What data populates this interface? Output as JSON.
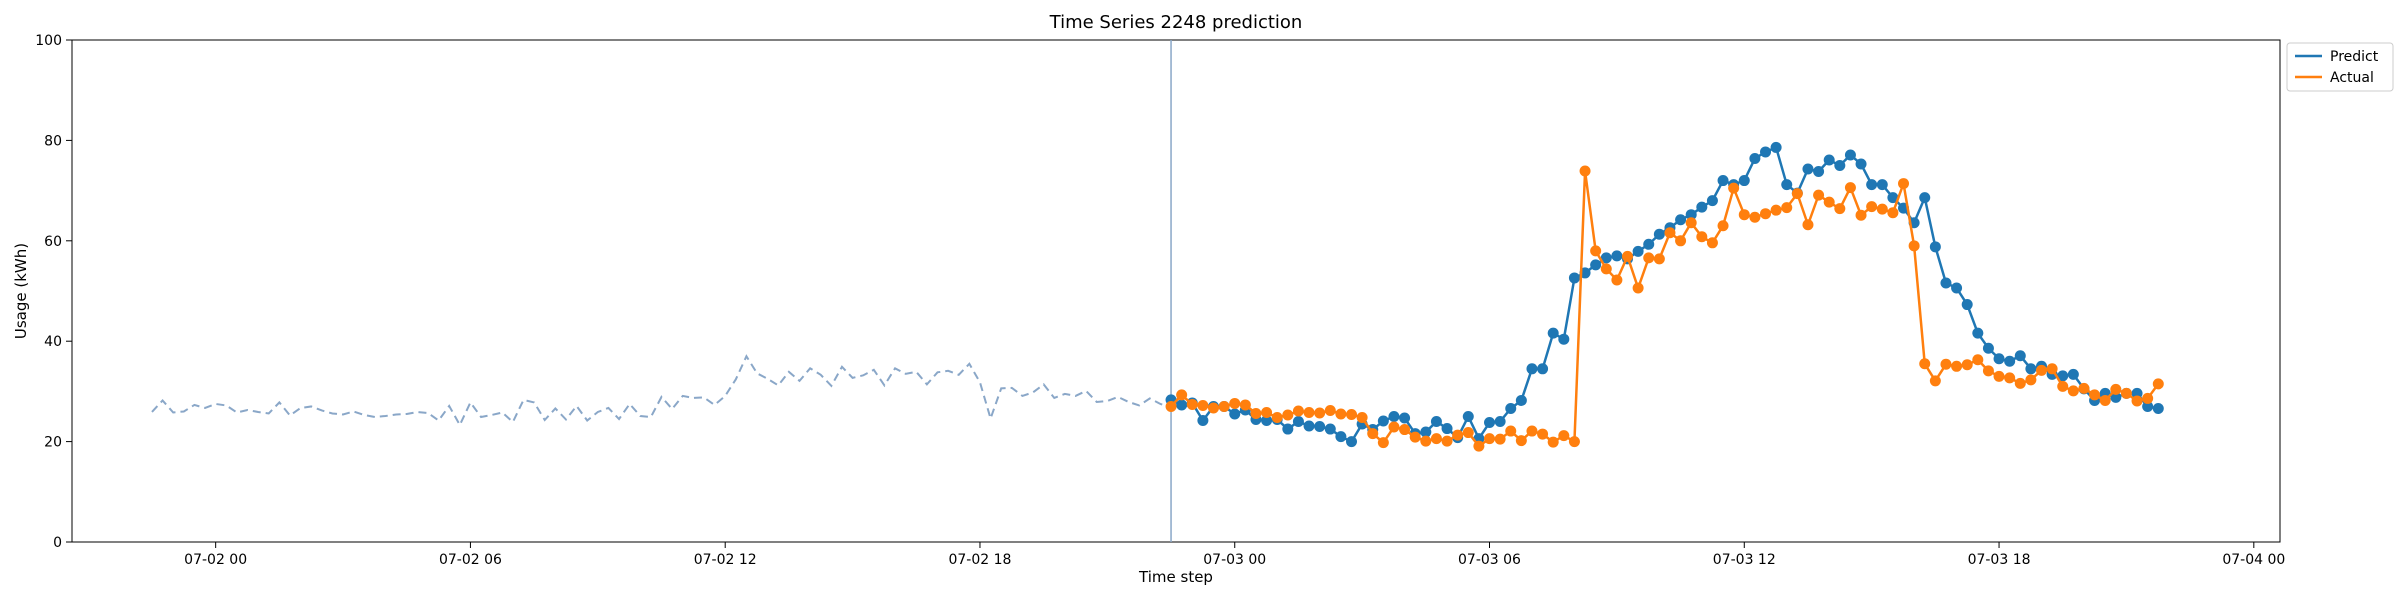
{
  "colors": {
    "predict": "#1f77b4",
    "actual": "#ff7f0e",
    "history": "#8aa7c8",
    "split_line": "#8aa7c8"
  },
  "chart_data": {
    "type": "line",
    "title": "Time Series 2248 prediction",
    "xlabel": "Time step",
    "ylabel": "Usage (kWh)",
    "xlim": [
      "07-01 20:37",
      "07-04 00:37"
    ],
    "ylim": [
      0,
      100
    ],
    "grid": false,
    "legend_position": "top-right",
    "x_ticks": [
      "07-02 00",
      "07-02 06",
      "07-02 12",
      "07-02 18",
      "07-03 00",
      "07-03 06",
      "07-03 12",
      "07-03 18",
      "07-04 00"
    ],
    "y_ticks": [
      0,
      20,
      40,
      60,
      80,
      100
    ],
    "split_time": "07-02 22:30",
    "history": {
      "start": "07-01 22:30",
      "step_minutes": 15,
      "values": [
        25.9,
        28.2,
        25.8,
        26.0,
        27.3,
        26.7,
        27.5,
        27.2,
        25.8,
        26.3,
        25.9,
        25.6,
        27.8,
        25.2,
        26.7,
        27.0,
        26.2,
        25.6,
        25.4,
        26.0,
        25.3,
        24.9,
        25.1,
        25.4,
        25.5,
        25.9,
        25.7,
        24.2,
        27.1,
        23.3,
        27.8,
        24.9,
        25.3,
        25.8,
        23.9,
        28.3,
        27.8,
        24.3,
        26.6,
        24.4,
        27.1,
        24.2,
        25.9,
        26.7,
        24.5,
        27.5,
        25.1,
        24.9,
        28.9,
        26.5,
        29.1,
        28.7,
        28.8,
        27.3,
        29.1,
        32.4,
        37.0,
        33.6,
        32.5,
        31.2,
        33.9,
        32.1,
        34.6,
        33.3,
        31.1,
        34.9,
        32.7,
        33.2,
        34.3,
        31.2,
        34.6,
        33.5,
        33.9,
        31.4,
        33.8,
        34.1,
        33.3,
        35.5,
        31.8,
        24.6,
        30.6,
        30.7,
        29.1,
        29.8,
        31.4,
        28.7,
        29.5,
        29.1,
        30.1,
        27.9,
        28.1,
        28.9,
        27.9,
        27.2,
        28.6,
        27.5,
        26.8,
        26.9,
        27.3
      ]
    },
    "forecast_start": "07-02 22:30",
    "forecast_step_minutes": 15,
    "series": [
      {
        "name": "Predict",
        "values": [
          28.3,
          27.3,
          27.7,
          24.2,
          27.0,
          27.0,
          25.5,
          26.3,
          24.4,
          24.2,
          24.4,
          22.5,
          24.0,
          23.1,
          23.0,
          22.5,
          21.0,
          20.0,
          23.5,
          22.4,
          24.1,
          25.0,
          24.7,
          21.6,
          21.9,
          24.0,
          22.6,
          20.8,
          25.0,
          20.6,
          23.8,
          24.0,
          26.6,
          28.2,
          34.5,
          34.5,
          41.6,
          40.4,
          52.6,
          53.6,
          55.2,
          56.6,
          57.0,
          56.4,
          57.9,
          59.3,
          61.3,
          62.6,
          64.2,
          65.2,
          66.7,
          68.0,
          72.0,
          71.2,
          72.0,
          76.4,
          77.7,
          78.6,
          71.2,
          69.5,
          74.3,
          73.8,
          76.1,
          75.0,
          77.1,
          75.3,
          71.2,
          71.2,
          68.6,
          66.5,
          63.6,
          68.6,
          58.8,
          51.6,
          50.6,
          47.3,
          41.6,
          38.6,
          36.5,
          36.0,
          37.1,
          34.5,
          35.0,
          33.4,
          33.1,
          33.4,
          30.5,
          28.2,
          29.6,
          28.8,
          29.6,
          29.6,
          27.0,
          26.6
        ]
      },
      {
        "name": "Actual",
        "values": [
          27.0,
          29.3,
          27.4,
          27.2,
          26.7,
          27.0,
          27.6,
          27.3,
          25.6,
          25.8,
          24.8,
          25.3,
          26.1,
          25.8,
          25.7,
          26.2,
          25.5,
          25.4,
          24.8,
          21.6,
          19.8,
          22.9,
          22.4,
          20.9,
          20.1,
          20.6,
          20.1,
          21.3,
          21.8,
          19.1,
          20.6,
          20.5,
          22.1,
          20.2,
          22.1,
          21.5,
          19.9,
          21.2,
          20.0,
          73.9,
          58.0,
          54.4,
          52.2,
          56.9,
          50.6,
          56.6,
          56.4,
          61.6,
          60.0,
          63.6,
          60.8,
          59.6,
          63.0,
          70.5,
          65.2,
          64.7,
          65.4,
          66.1,
          66.6,
          69.4,
          63.2,
          69.1,
          67.7,
          66.4,
          70.6,
          65.1,
          66.8,
          66.3,
          65.6,
          71.4,
          59.0,
          35.5,
          32.1,
          35.4,
          35.0,
          35.3,
          36.3,
          34.1,
          33.0,
          32.7,
          31.6,
          32.3,
          34.2,
          34.5,
          31.0,
          30.1,
          30.6,
          29.3,
          28.2,
          30.4,
          29.6,
          28.1,
          28.6,
          31.5
        ]
      }
    ]
  }
}
